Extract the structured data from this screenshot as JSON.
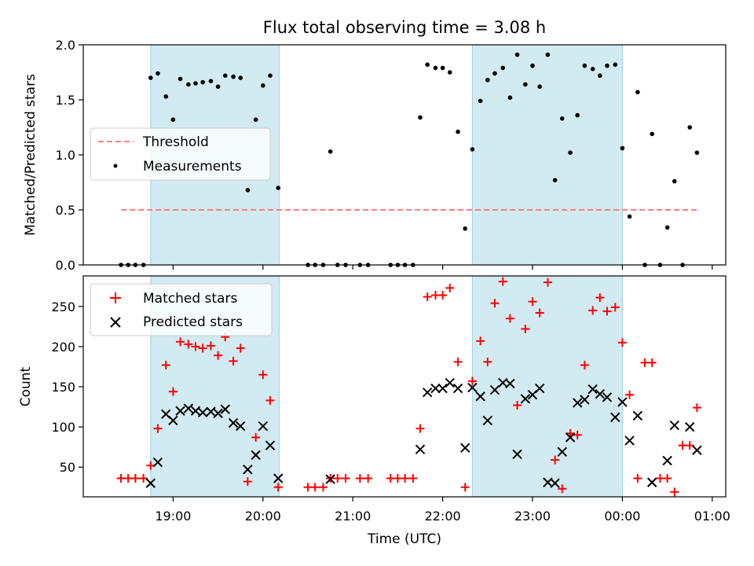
{
  "chart_data": [
    {
      "type": "scatter",
      "title": "Flux total observing time = 3.08 h",
      "xlabel": "",
      "ylabel": "Matched/Predicted stars",
      "ylim": [
        0,
        2.0
      ],
      "xlim_hours": [
        18.0,
        25.15
      ],
      "yticks": [
        0.0,
        0.5,
        1.0,
        1.5,
        2.0
      ],
      "ytick_labels": [
        "0.0",
        "0.5",
        "1.0",
        "1.5",
        "2.0"
      ],
      "shaded_ranges_hours": [
        [
          18.75,
          20.18
        ],
        [
          22.33,
          24.0
        ]
      ],
      "shade_color": "#add8e6",
      "legend": {
        "position": "center-left",
        "entries": [
          {
            "label": "Threshold",
            "kind": "dashed-line",
            "color": "#ff7f7f"
          },
          {
            "label": "Measurements",
            "kind": "dot",
            "color": "#000000"
          }
        ]
      },
      "threshold": {
        "value": 0.5,
        "x_range_hours": [
          18.42,
          24.83
        ],
        "color": "#ff7f7f"
      },
      "series": [
        {
          "name": "Measurements",
          "x_hours": [
            18.42,
            18.5,
            18.58,
            18.67,
            18.75,
            18.83,
            18.92,
            19.0,
            19.08,
            19.17,
            19.25,
            19.33,
            19.42,
            19.5,
            19.58,
            19.67,
            19.75,
            19.83,
            19.92,
            20.0,
            20.08,
            20.17,
            20.5,
            20.58,
            20.67,
            20.75,
            20.83,
            20.92,
            21.08,
            21.17,
            21.42,
            21.5,
            21.58,
            21.67,
            21.75,
            21.83,
            21.92,
            22.0,
            22.08,
            22.17,
            22.25,
            22.33,
            22.42,
            22.5,
            22.58,
            22.67,
            22.75,
            22.83,
            22.92,
            23.0,
            23.08,
            23.17,
            23.25,
            23.33,
            23.42,
            23.5,
            23.58,
            23.67,
            23.75,
            23.83,
            23.92,
            24.0,
            24.08,
            24.17,
            24.25,
            24.33,
            24.42,
            24.5,
            24.58,
            24.67,
            24.75,
            24.83
          ],
          "y": [
            0.0,
            0.0,
            0.0,
            0.0,
            1.7,
            1.74,
            1.53,
            1.32,
            1.69,
            1.64,
            1.65,
            1.66,
            1.67,
            1.62,
            1.72,
            1.71,
            1.7,
            0.68,
            1.32,
            1.63,
            1.72,
            0.7,
            0.0,
            0.0,
            0.0,
            1.03,
            0.0,
            0.0,
            0.0,
            0.0,
            0.0,
            0.0,
            0.0,
            0.0,
            1.34,
            1.82,
            1.79,
            1.79,
            1.75,
            1.21,
            0.33,
            1.05,
            1.49,
            1.68,
            1.74,
            1.79,
            1.52,
            1.91,
            1.64,
            1.81,
            1.62,
            1.91,
            0.77,
            1.33,
            1.02,
            1.36,
            1.81,
            1.78,
            1.72,
            1.81,
            1.82,
            1.06,
            0.44,
            1.57,
            0.0,
            1.19,
            0.0,
            0.34,
            0.76,
            0.0,
            1.25,
            1.02
          ]
        }
      ]
    },
    {
      "type": "scatter",
      "title": "",
      "xlabel": "Time (UTC)",
      "ylabel": "Count",
      "ylim": [
        13,
        288
      ],
      "xlim_hours": [
        18.0,
        25.15
      ],
      "xticks_hours": [
        19,
        20,
        21,
        22,
        23,
        24,
        25
      ],
      "xtick_labels": [
        "19:00",
        "20:00",
        "21:00",
        "22:00",
        "23:00",
        "00:00",
        "01:00"
      ],
      "yticks": [
        50,
        100,
        150,
        200,
        250
      ],
      "ytick_labels": [
        "50",
        "100",
        "150",
        "200",
        "250"
      ],
      "shaded_ranges_hours": [
        [
          18.75,
          20.18
        ],
        [
          22.33,
          24.0
        ]
      ],
      "shade_color": "#add8e6",
      "legend": {
        "position": "top-left",
        "entries": [
          {
            "label": "Matched stars",
            "kind": "plus",
            "color": "#ff0000"
          },
          {
            "label": "Predicted stars",
            "kind": "x",
            "color": "#000000"
          }
        ]
      },
      "series": [
        {
          "name": "Matched stars",
          "marker": "plus",
          "color": "#ff0000",
          "x_hours": [
            18.42,
            18.5,
            18.58,
            18.67,
            18.75,
            18.83,
            18.92,
            19.0,
            19.08,
            19.17,
            19.25,
            19.33,
            19.42,
            19.5,
            19.58,
            19.67,
            19.75,
            19.83,
            19.92,
            20.0,
            20.08,
            20.17,
            20.5,
            20.58,
            20.67,
            20.75,
            20.83,
            20.92,
            21.08,
            21.17,
            21.42,
            21.5,
            21.58,
            21.67,
            21.75,
            21.83,
            21.92,
            22.0,
            22.08,
            22.17,
            22.25,
            22.33,
            22.42,
            22.5,
            22.58,
            22.67,
            22.75,
            22.83,
            22.92,
            23.0,
            23.08,
            23.17,
            23.25,
            23.33,
            23.42,
            23.5,
            23.58,
            23.67,
            23.75,
            23.83,
            23.92,
            24.0,
            24.08,
            24.17,
            24.25,
            24.33,
            24.42,
            24.5,
            24.58,
            24.67,
            24.75,
            24.83
          ],
          "y": [
            36,
            36,
            36,
            36,
            52,
            98,
            177,
            144,
            206,
            203,
            200,
            198,
            201,
            189,
            212,
            182,
            198,
            32,
            87,
            165,
            133,
            25,
            25,
            25,
            25,
            36,
            36,
            36,
            36,
            36,
            36,
            36,
            36,
            36,
            98,
            262,
            264,
            264,
            273,
            181,
            25,
            157,
            207,
            181,
            254,
            281,
            235,
            127,
            222,
            256,
            242,
            280,
            59,
            23,
            92,
            90,
            177,
            245,
            261,
            244,
            249,
            205,
            140,
            36,
            180,
            180,
            36,
            36,
            19,
            77,
            77,
            124
          ]
        },
        {
          "name": "Predicted stars",
          "marker": "x",
          "color": "#000000",
          "x_hours": [
            18.75,
            18.83,
            18.92,
            19.0,
            19.08,
            19.17,
            19.25,
            19.33,
            19.42,
            19.5,
            19.58,
            19.67,
            19.75,
            19.83,
            19.92,
            20.0,
            20.08,
            20.17,
            20.75,
            21.75,
            21.83,
            21.92,
            22.0,
            22.08,
            22.17,
            22.25,
            22.33,
            22.42,
            22.5,
            22.58,
            22.67,
            22.75,
            22.83,
            22.92,
            23.0,
            23.08,
            23.17,
            23.25,
            23.33,
            23.42,
            23.5,
            23.58,
            23.67,
            23.75,
            23.83,
            23.92,
            24.0,
            24.08,
            24.17,
            24.33,
            24.5,
            24.58,
            24.75,
            24.83
          ],
          "y": [
            30,
            56,
            116,
            108,
            120,
            123,
            120,
            118,
            119,
            117,
            122,
            105,
            101,
            47,
            65,
            101,
            77,
            36,
            35,
            72,
            143,
            148,
            148,
            155,
            148,
            74,
            149,
            138,
            108,
            146,
            155,
            154,
            66,
            135,
            140,
            148,
            31,
            30,
            69,
            87,
            130,
            134,
            147,
            141,
            137,
            112,
            131,
            83,
            114,
            31,
            58,
            102,
            100,
            71
          ]
        }
      ]
    }
  ]
}
